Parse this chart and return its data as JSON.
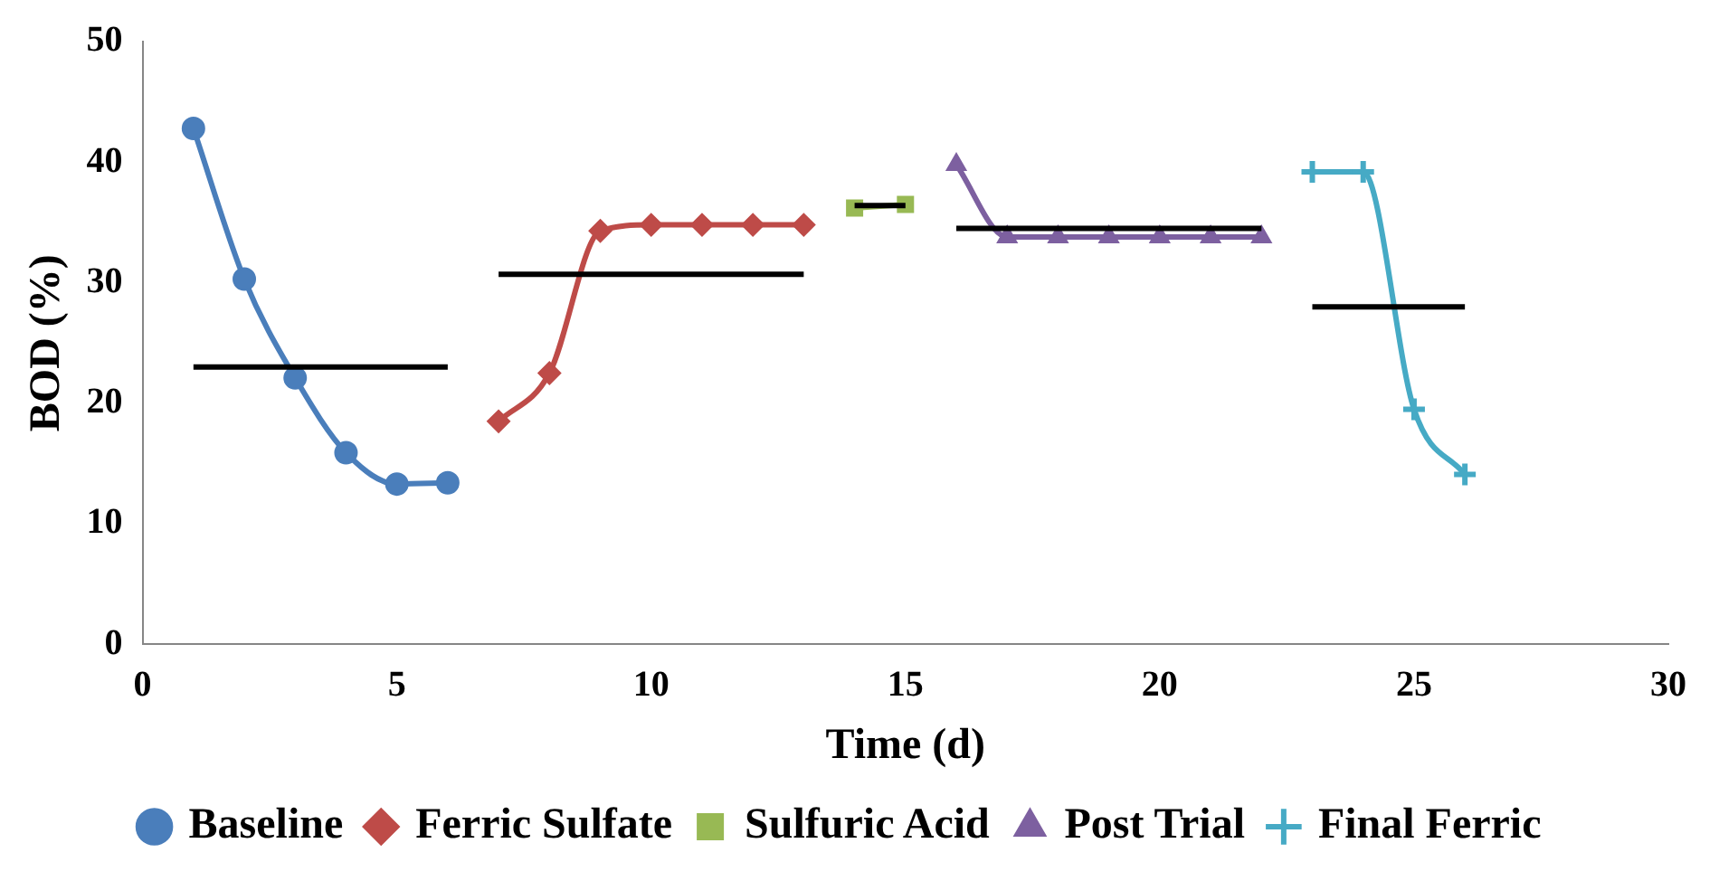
{
  "chart_data": {
    "type": "line",
    "xlabel": "Time (d)",
    "ylabel": "BOD (%)",
    "xlim": [
      0,
      30
    ],
    "xticks": [
      0,
      5,
      10,
      15,
      20,
      25,
      30
    ],
    "ylim": [
      0,
      50
    ],
    "yticks": [
      0,
      10,
      20,
      30,
      40,
      50
    ],
    "grid": false,
    "legend": "bottom",
    "series": [
      {
        "name": "Baseline",
        "color": "#4a7ebb",
        "marker": "circle",
        "x": [
          1,
          2,
          3,
          4,
          5,
          6
        ],
        "values": [
          42.8,
          30.3,
          22.1,
          15.9,
          13.3,
          13.4
        ]
      },
      {
        "name": "Ferric Sulfate",
        "color": "#be4b48",
        "marker": "diamond",
        "x": [
          7,
          8,
          9,
          10,
          11,
          12,
          13
        ],
        "values": [
          18.5,
          22.5,
          34.3,
          34.8,
          34.8,
          34.8,
          34.8
        ]
      },
      {
        "name": "Sulfuric Acid",
        "color": "#98b954",
        "marker": "square",
        "x": [
          14,
          15
        ],
        "values": [
          36.2,
          36.5
        ]
      },
      {
        "name": "Post Trial",
        "color": "#7d60a0",
        "marker": "triangle",
        "x": [
          16,
          17,
          18,
          19,
          20,
          21,
          22
        ],
        "values": [
          39.8,
          33.8,
          33.8,
          33.8,
          33.8,
          33.8,
          33.8
        ]
      },
      {
        "name": "Final Ferric",
        "color": "#46aac5",
        "marker": "cross",
        "x": [
          23,
          24,
          25,
          26
        ],
        "values": [
          39.2,
          39.2,
          19.5,
          14.1
        ]
      },
      {
        "type": "line",
        "color": "#000000",
        "marker": "none",
        "x": [
          1,
          6
        ],
        "values": [
          23,
          23
        ]
      },
      {
        "type": "line",
        "color": "#000000",
        "marker": "none",
        "x": [
          7,
          13
        ],
        "values": [
          30.7,
          30.7
        ]
      },
      {
        "type": "line",
        "color": "#000000",
        "marker": "none",
        "x": [
          14,
          15
        ],
        "values": [
          36.4,
          36.4
        ]
      },
      {
        "type": "line",
        "color": "#000000",
        "marker": "none",
        "x": [
          16,
          22
        ],
        "values": [
          34.5,
          34.5
        ]
      },
      {
        "type": "line",
        "color": "#000000",
        "marker": "none",
        "x": [
          23,
          26
        ],
        "values": [
          28,
          28
        ]
      }
    ]
  }
}
